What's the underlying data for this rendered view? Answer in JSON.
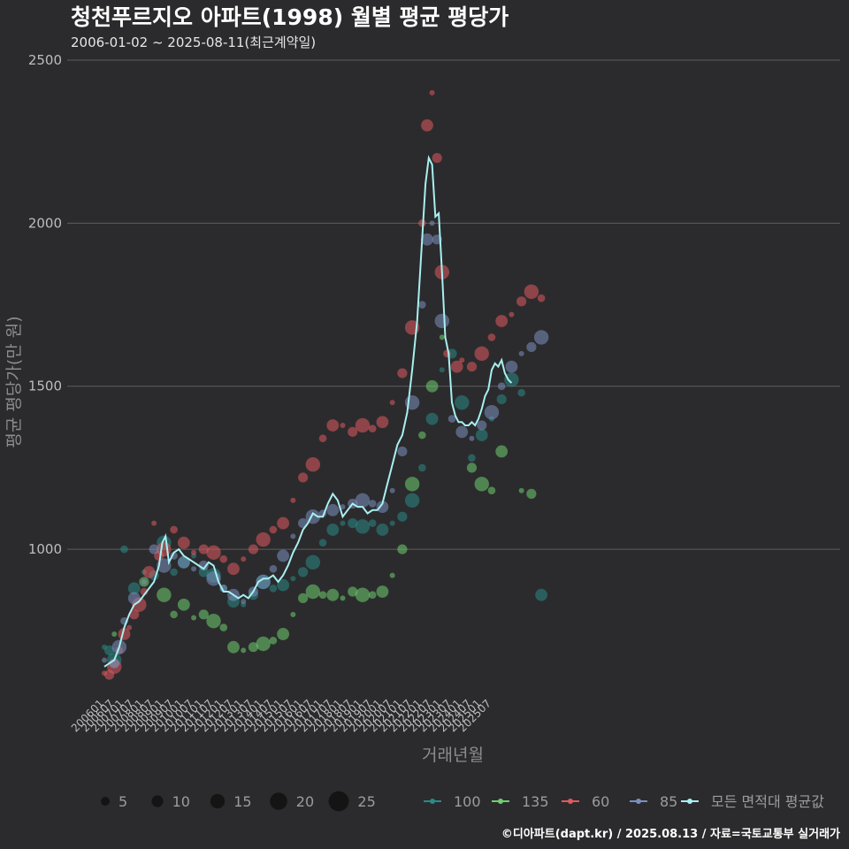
{
  "header": {
    "title": "청천푸르지오 아파트(1998) 월별 평균 평당가",
    "subtitle": "2006-01-02 ~ 2025-08-11(최근계약일)"
  },
  "caption": "©디아파트(dapt.kr) / 2025.08.13 / 자료=국토교통부 실거래가",
  "chart_data": {
    "type": "line",
    "xlabel": "거래년월",
    "ylabel": "평균 평당가(만 원)",
    "ylim": [
      550,
      2500
    ],
    "yticks": [
      1000,
      1500,
      2000,
      2500
    ],
    "grid": true,
    "x_range": [
      "200601",
      "202508"
    ],
    "x_tick_labels": [
      "200601",
      "200607",
      "200701",
      "200707",
      "200801",
      "200807",
      "200901",
      "200907",
      "201001",
      "201007",
      "201101",
      "201107",
      "201201",
      "201207",
      "201301",
      "201307",
      "201401",
      "201407",
      "201501",
      "201507",
      "201601",
      "201607",
      "201701",
      "201707",
      "201801",
      "201807",
      "201901",
      "201907",
      "202001",
      "202007",
      "202101",
      "202107",
      "202201",
      "202207",
      "202301",
      "202307",
      "202401",
      "202407",
      "202501",
      "202507"
    ],
    "colors": {
      "100": "#2a8a86",
      "135": "#6fcf6f",
      "60": "#e05a5e",
      "85": "#7b8fbf",
      "avg": "#a8f0f0"
    },
    "size_legend": {
      "title": "",
      "values": [
        5,
        10,
        15,
        20,
        25
      ]
    },
    "legend_position": "bottom",
    "series": [
      {
        "name": "100",
        "values": [
          [
            0,
            700
          ],
          [
            3,
            690
          ],
          [
            6,
            660
          ],
          [
            12,
            1000
          ],
          [
            18,
            880
          ],
          [
            24,
            930
          ],
          [
            30,
            920
          ],
          [
            36,
            1020
          ],
          [
            42,
            930
          ],
          [
            48,
            960
          ],
          [
            54,
            980
          ],
          [
            60,
            930
          ],
          [
            66,
            920
          ],
          [
            72,
            880
          ],
          [
            78,
            840
          ],
          [
            84,
            830
          ],
          [
            90,
            860
          ],
          [
            96,
            900
          ],
          [
            102,
            880
          ],
          [
            108,
            890
          ],
          [
            114,
            910
          ],
          [
            120,
            930
          ],
          [
            126,
            960
          ],
          [
            132,
            1020
          ],
          [
            138,
            1060
          ],
          [
            144,
            1080
          ],
          [
            150,
            1080
          ],
          [
            156,
            1070
          ],
          [
            162,
            1080
          ],
          [
            168,
            1060
          ],
          [
            174,
            1080
          ],
          [
            180,
            1100
          ],
          [
            186,
            1150
          ],
          [
            192,
            1250
          ],
          [
            198,
            1400
          ],
          [
            204,
            1550
          ],
          [
            210,
            1600
          ],
          [
            216,
            1450
          ],
          [
            222,
            1280
          ],
          [
            228,
            1350
          ],
          [
            234,
            1400
          ],
          [
            240,
            1460
          ],
          [
            246,
            1520
          ],
          [
            252,
            1480
          ],
          [
            264,
            860
          ]
        ]
      },
      {
        "name": "135",
        "values": [
          [
            6,
            740
          ],
          [
            24,
            900
          ],
          [
            36,
            860
          ],
          [
            42,
            800
          ],
          [
            48,
            830
          ],
          [
            54,
            790
          ],
          [
            60,
            800
          ],
          [
            66,
            780
          ],
          [
            72,
            760
          ],
          [
            78,
            700
          ],
          [
            84,
            690
          ],
          [
            90,
            700
          ],
          [
            96,
            710
          ],
          [
            102,
            720
          ],
          [
            108,
            740
          ],
          [
            114,
            800
          ],
          [
            120,
            850
          ],
          [
            126,
            870
          ],
          [
            132,
            860
          ],
          [
            138,
            860
          ],
          [
            144,
            850
          ],
          [
            150,
            870
          ],
          [
            156,
            860
          ],
          [
            162,
            860
          ],
          [
            168,
            870
          ],
          [
            174,
            920
          ],
          [
            180,
            1000
          ],
          [
            186,
            1200
          ],
          [
            192,
            1350
          ],
          [
            198,
            1500
          ],
          [
            204,
            1650
          ],
          [
            222,
            1250
          ],
          [
            228,
            1200
          ],
          [
            234,
            1180
          ],
          [
            240,
            1300
          ],
          [
            252,
            1180
          ],
          [
            258,
            1170
          ]
        ]
      },
      {
        "name": "60",
        "values": [
          [
            0,
            620
          ],
          [
            3,
            615
          ],
          [
            6,
            640
          ],
          [
            9,
            690
          ],
          [
            12,
            740
          ],
          [
            15,
            760
          ],
          [
            18,
            800
          ],
          [
            21,
            830
          ],
          [
            24,
            870
          ],
          [
            27,
            930
          ],
          [
            30,
            1080
          ],
          [
            33,
            980
          ],
          [
            36,
            1000
          ],
          [
            42,
            1060
          ],
          [
            48,
            1020
          ],
          [
            54,
            990
          ],
          [
            60,
            1000
          ],
          [
            66,
            990
          ],
          [
            72,
            970
          ],
          [
            78,
            940
          ],
          [
            84,
            970
          ],
          [
            90,
            1000
          ],
          [
            96,
            1030
          ],
          [
            102,
            1060
          ],
          [
            108,
            1080
          ],
          [
            114,
            1150
          ],
          [
            120,
            1220
          ],
          [
            126,
            1260
          ],
          [
            132,
            1340
          ],
          [
            138,
            1380
          ],
          [
            144,
            1380
          ],
          [
            150,
            1360
          ],
          [
            156,
            1380
          ],
          [
            162,
            1370
          ],
          [
            168,
            1390
          ],
          [
            174,
            1450
          ],
          [
            180,
            1540
          ],
          [
            186,
            1680
          ],
          [
            192,
            2000
          ],
          [
            195,
            2300
          ],
          [
            198,
            2400
          ],
          [
            201,
            2200
          ],
          [
            204,
            1850
          ],
          [
            207,
            1600
          ],
          [
            213,
            1560
          ],
          [
            216,
            1580
          ],
          [
            222,
            1560
          ],
          [
            228,
            1600
          ],
          [
            234,
            1650
          ],
          [
            240,
            1700
          ],
          [
            246,
            1720
          ],
          [
            252,
            1760
          ],
          [
            258,
            1790
          ],
          [
            264,
            1770
          ]
        ]
      },
      {
        "name": "85",
        "values": [
          [
            0,
            660
          ],
          [
            6,
            650
          ],
          [
            9,
            700
          ],
          [
            12,
            780
          ],
          [
            18,
            850
          ],
          [
            24,
            900
          ],
          [
            30,
            1000
          ],
          [
            36,
            950
          ],
          [
            42,
            980
          ],
          [
            48,
            960
          ],
          [
            54,
            940
          ],
          [
            60,
            950
          ],
          [
            66,
            910
          ],
          [
            72,
            880
          ],
          [
            78,
            860
          ],
          [
            84,
            840
          ],
          [
            90,
            870
          ],
          [
            96,
            900
          ],
          [
            102,
            940
          ],
          [
            108,
            980
          ],
          [
            114,
            1040
          ],
          [
            120,
            1080
          ],
          [
            126,
            1100
          ],
          [
            132,
            1110
          ],
          [
            138,
            1120
          ],
          [
            144,
            1130
          ],
          [
            150,
            1140
          ],
          [
            156,
            1150
          ],
          [
            162,
            1140
          ],
          [
            168,
            1130
          ],
          [
            174,
            1180
          ],
          [
            180,
            1300
          ],
          [
            186,
            1450
          ],
          [
            192,
            1750
          ],
          [
            195,
            1950
          ],
          [
            198,
            2000
          ],
          [
            201,
            1950
          ],
          [
            204,
            1700
          ],
          [
            210,
            1400
          ],
          [
            216,
            1360
          ],
          [
            222,
            1340
          ],
          [
            228,
            1380
          ],
          [
            234,
            1420
          ],
          [
            240,
            1500
          ],
          [
            246,
            1560
          ],
          [
            252,
            1600
          ],
          [
            258,
            1620
          ],
          [
            264,
            1650
          ]
        ]
      }
    ],
    "average": {
      "name": "모든 면적대 평균값",
      "values": [
        [
          0,
          640
        ],
        [
          3,
          650
        ],
        [
          6,
          660
        ],
        [
          9,
          700
        ],
        [
          12,
          760
        ],
        [
          15,
          800
        ],
        [
          18,
          830
        ],
        [
          21,
          840
        ],
        [
          24,
          860
        ],
        [
          27,
          880
        ],
        [
          30,
          900
        ],
        [
          33,
          950
        ],
        [
          35,
          1020
        ],
        [
          37,
          1040
        ],
        [
          39,
          960
        ],
        [
          42,
          990
        ],
        [
          45,
          1000
        ],
        [
          48,
          980
        ],
        [
          51,
          970
        ],
        [
          54,
          960
        ],
        [
          57,
          950
        ],
        [
          60,
          940
        ],
        [
          63,
          960
        ],
        [
          66,
          950
        ],
        [
          69,
          900
        ],
        [
          72,
          870
        ],
        [
          75,
          870
        ],
        [
          78,
          860
        ],
        [
          81,
          850
        ],
        [
          84,
          860
        ],
        [
          87,
          850
        ],
        [
          90,
          870
        ],
        [
          93,
          900
        ],
        [
          96,
          910
        ],
        [
          99,
          910
        ],
        [
          102,
          920
        ],
        [
          105,
          900
        ],
        [
          108,
          920
        ],
        [
          111,
          950
        ],
        [
          114,
          990
        ],
        [
          117,
          1020
        ],
        [
          120,
          1060
        ],
        [
          123,
          1080
        ],
        [
          126,
          1110
        ],
        [
          129,
          1100
        ],
        [
          132,
          1100
        ],
        [
          135,
          1140
        ],
        [
          138,
          1170
        ],
        [
          141,
          1150
        ],
        [
          144,
          1100
        ],
        [
          147,
          1120
        ],
        [
          150,
          1140
        ],
        [
          153,
          1130
        ],
        [
          156,
          1130
        ],
        [
          159,
          1110
        ],
        [
          162,
          1120
        ],
        [
          165,
          1120
        ],
        [
          168,
          1140
        ],
        [
          171,
          1200
        ],
        [
          174,
          1260
        ],
        [
          177,
          1320
        ],
        [
          180,
          1350
        ],
        [
          183,
          1420
        ],
        [
          186,
          1550
        ],
        [
          189,
          1700
        ],
        [
          192,
          1950
        ],
        [
          194,
          2120
        ],
        [
          196,
          2200
        ],
        [
          198,
          2180
        ],
        [
          200,
          2020
        ],
        [
          202,
          2030
        ],
        [
          204,
          1850
        ],
        [
          206,
          1650
        ],
        [
          208,
          1600
        ],
        [
          210,
          1450
        ],
        [
          212,
          1410
        ],
        [
          214,
          1390
        ],
        [
          216,
          1390
        ],
        [
          218,
          1380
        ],
        [
          220,
          1380
        ],
        [
          222,
          1390
        ],
        [
          224,
          1380
        ],
        [
          226,
          1400
        ],
        [
          228,
          1430
        ],
        [
          230,
          1470
        ],
        [
          232,
          1490
        ],
        [
          234,
          1550
        ],
        [
          236,
          1570
        ],
        [
          238,
          1560
        ],
        [
          240,
          1580
        ],
        [
          242,
          1540
        ],
        [
          244,
          1520
        ],
        [
          246,
          1510
        ]
      ]
    }
  }
}
